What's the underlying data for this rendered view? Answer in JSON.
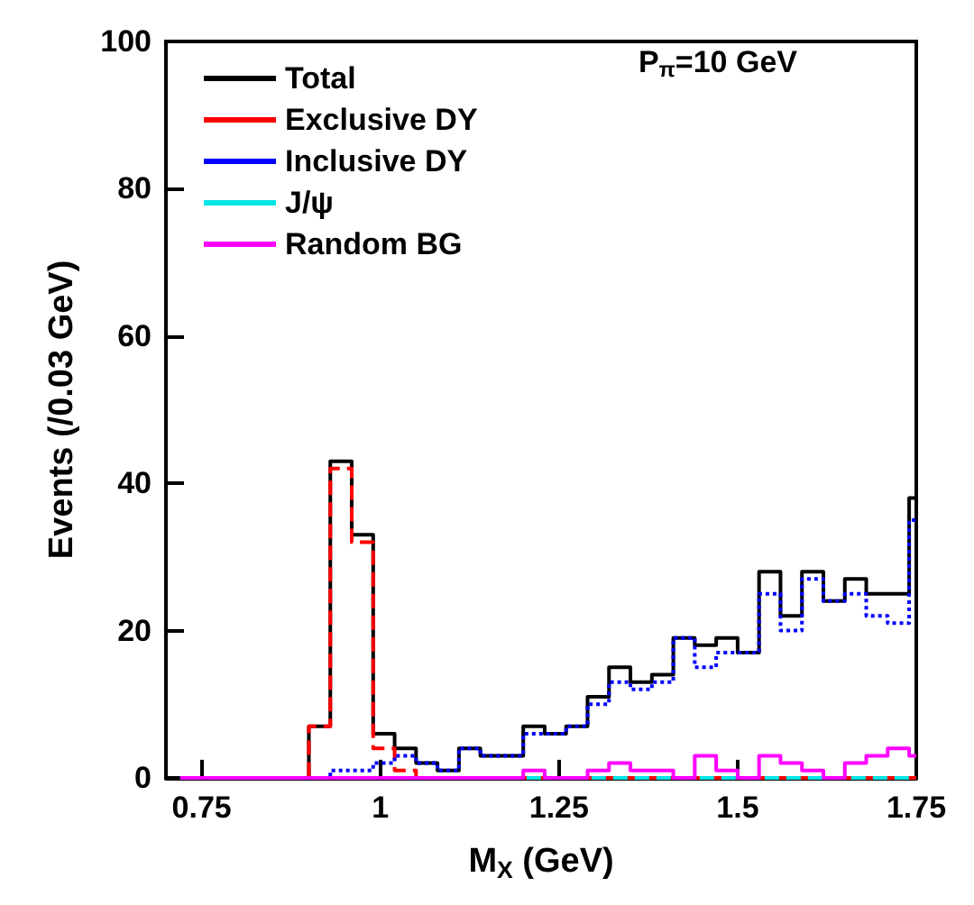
{
  "chart_data": {
    "type": "histogram",
    "xlabel": "M$_{X}$ (GeV)",
    "ylabel": "Events (/0.03 GeV)",
    "annotations": [
      "P$_{π}$=10 GeV"
    ],
    "bins": [
      0.72,
      0.75,
      0.78,
      0.81,
      0.84,
      0.87,
      0.9,
      0.93,
      0.96,
      0.99,
      1.02,
      1.05,
      1.08,
      1.11,
      1.14,
      1.17,
      1.2,
      1.23,
      1.26,
      1.29,
      1.32,
      1.35,
      1.38,
      1.41,
      1.44,
      1.47,
      1.5,
      1.53,
      1.56,
      1.59,
      1.62,
      1.65,
      1.68,
      1.71,
      1.74,
      1.75
    ],
    "series": [
      {
        "name": "Total",
        "color": "#000000",
        "line_style": "solid",
        "values": [
          0,
          0,
          0,
          0,
          0,
          0,
          7,
          43,
          33,
          6,
          4,
          2,
          1,
          4,
          3,
          3,
          7,
          6,
          7,
          11,
          15,
          13,
          14,
          19,
          18,
          19,
          17,
          28,
          22,
          28,
          24,
          27,
          25,
          25,
          38
        ]
      },
      {
        "name": "Exclusive DY",
        "color": "#ff0000",
        "line_style": "dashed",
        "values": [
          0,
          0,
          0,
          0,
          0,
          0,
          7,
          42,
          32,
          4,
          1,
          0,
          0,
          0,
          0,
          0,
          0,
          0,
          0,
          0,
          0,
          0,
          0,
          0,
          0,
          0,
          0,
          0,
          0,
          0,
          0,
          0,
          0,
          0,
          0
        ]
      },
      {
        "name": "Inclusive DY",
        "color": "#0000ff",
        "line_style": "dotted",
        "values": [
          0,
          0,
          0,
          0,
          0,
          0,
          0,
          1,
          1,
          2,
          3,
          2,
          1,
          4,
          3,
          3,
          6,
          6,
          7,
          10,
          13,
          12,
          13,
          19,
          15,
          17,
          17,
          25,
          20,
          27,
          24,
          25,
          22,
          21,
          35
        ]
      },
      {
        "name": "J/ψ",
        "color": "#00e5e5",
        "line_style": "dashed",
        "values": [
          0,
          0,
          0,
          0,
          0,
          0,
          0,
          0,
          0,
          0,
          0,
          0,
          0,
          0,
          0,
          0,
          0,
          0,
          0,
          0,
          0,
          0,
          0,
          0,
          0,
          0,
          0,
          0,
          0,
          0,
          0,
          0,
          0,
          0,
          0
        ]
      },
      {
        "name": "Random BG",
        "color": "#ff00ff",
        "line_style": "solid",
        "values": [
          0,
          0,
          0,
          0,
          0,
          0,
          0,
          0,
          0,
          0,
          0,
          0,
          0,
          0,
          0,
          0,
          1,
          0,
          0,
          1,
          2,
          1,
          1,
          0,
          3,
          1,
          0,
          3,
          2,
          1,
          0,
          2,
          3,
          4,
          3
        ]
      }
    ],
    "xlim": [
      0.7,
      1.75
    ],
    "xticks": [
      0.75,
      1,
      1.25,
      1.5,
      1.75
    ],
    "ylim": [
      0,
      100
    ],
    "yticks": [
      0,
      20,
      40,
      60,
      80,
      100
    ],
    "legend": "top left"
  }
}
